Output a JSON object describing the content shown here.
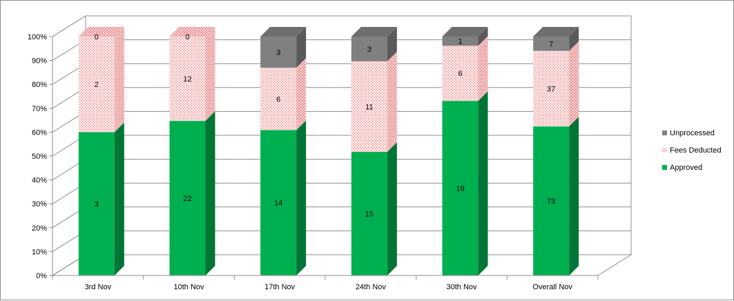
{
  "chart_data": {
    "type": "bar",
    "stacked": "percent",
    "style": "3d-column",
    "categories": [
      "3rd Nov",
      "10th Nov",
      "17th Nov",
      "24th Nov",
      "30th Nov",
      "Overall Nov"
    ],
    "series": [
      {
        "name": "Approved",
        "values": [
          3,
          22,
          14,
          15,
          19,
          73
        ],
        "color": "#00b050",
        "side_color": "#007a38"
      },
      {
        "name": "Fees Deducted",
        "values": [
          2,
          12,
          6,
          11,
          6,
          37
        ],
        "color": "#ffdede",
        "side_color": "#f3b0b0",
        "pattern": "dotted-red"
      },
      {
        "name": "Unprocessed",
        "values": [
          0,
          0,
          3,
          3,
          1,
          7
        ],
        "color": "#808080",
        "side_color": "#595959"
      }
    ],
    "y_ticks": [
      "0%",
      "10%",
      "20%",
      "30%",
      "40%",
      "50%",
      "60%",
      "70%",
      "80%",
      "90%",
      "100%"
    ],
    "ylim": [
      0,
      100
    ],
    "grid": true,
    "legend_position": "right",
    "legend_order": [
      "Unprocessed",
      "Fees Deducted",
      "Approved"
    ]
  }
}
